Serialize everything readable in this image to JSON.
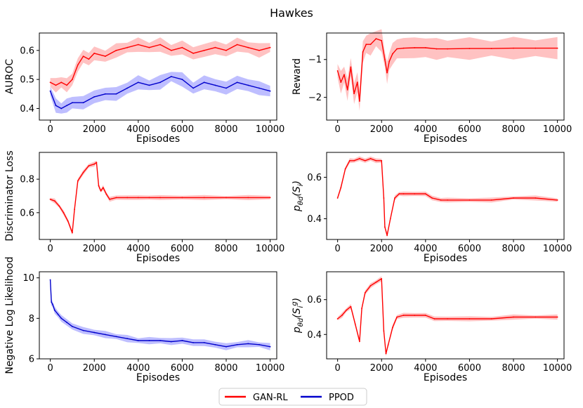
{
  "title": "Hawkes",
  "colors": {
    "gan": "#ff0000",
    "ppod": "#0000cc",
    "gan_band": "#ff7777",
    "ppod_band": "#6f6fff"
  },
  "legend": [
    {
      "label": "GAN-RL",
      "color": "#ff0000"
    },
    {
      "label": "PPOD",
      "color": "#0000cc"
    }
  ],
  "chart_data": [
    {
      "id": "auroc",
      "type": "line",
      "xlabel": "Episodes",
      "ylabel": "AUROC",
      "xlim": [
        -500,
        10300
      ],
      "ylim": [
        0.36,
        0.66
      ],
      "xticks": [
        0,
        2000,
        4000,
        6000,
        8000,
        10000
      ],
      "yticks": [
        0.4,
        0.5,
        0.6
      ],
      "ytick_labels": [
        "0.4",
        "0.5",
        "0.6"
      ],
      "series": [
        {
          "name": "GAN-RL",
          "color": "gan",
          "band": 0.025,
          "x": [
            0,
            250,
            500,
            750,
            1000,
            1250,
            1500,
            1750,
            2000,
            2500,
            3000,
            3500,
            4000,
            4500,
            5000,
            5500,
            6000,
            6500,
            7000,
            7500,
            8000,
            8500,
            9000,
            9500,
            10000
          ],
          "y": [
            0.49,
            0.48,
            0.49,
            0.48,
            0.5,
            0.55,
            0.58,
            0.57,
            0.59,
            0.58,
            0.6,
            0.61,
            0.62,
            0.61,
            0.62,
            0.6,
            0.61,
            0.59,
            0.6,
            0.61,
            0.6,
            0.62,
            0.61,
            0.6,
            0.61
          ]
        },
        {
          "name": "PPOD",
          "color": "ppod",
          "band": 0.025,
          "x": [
            0,
            250,
            500,
            750,
            1000,
            1500,
            2000,
            2500,
            3000,
            3500,
            4000,
            4500,
            5000,
            5500,
            6000,
            6500,
            7000,
            7500,
            8000,
            8500,
            9000,
            9500,
            10000
          ],
          "y": [
            0.46,
            0.41,
            0.4,
            0.41,
            0.42,
            0.42,
            0.44,
            0.45,
            0.45,
            0.47,
            0.49,
            0.48,
            0.49,
            0.51,
            0.5,
            0.47,
            0.49,
            0.48,
            0.47,
            0.49,
            0.48,
            0.47,
            0.46
          ]
        }
      ]
    },
    {
      "id": "reward",
      "type": "line",
      "xlabel": "Episodes",
      "ylabel": "Reward",
      "xlim": [
        -500,
        10300
      ],
      "ylim": [
        -2.6,
        -0.3
      ],
      "xticks": [
        0,
        2000,
        4000,
        6000,
        8000,
        10000
      ],
      "yticks": [
        -2,
        -1
      ],
      "ytick_labels": [
        "−2",
        "−1"
      ],
      "series": [
        {
          "name": "GAN-RL",
          "color": "gan",
          "band": 0.3,
          "x": [
            0,
            150,
            300,
            450,
            600,
            750,
            900,
            1000,
            1150,
            1300,
            1500,
            1750,
            2000,
            2150,
            2250,
            2350,
            2500,
            2700,
            3000,
            3500,
            4000,
            4500,
            5000,
            6000,
            7000,
            8000,
            9000,
            10000
          ],
          "y": [
            -1.3,
            -1.6,
            -1.4,
            -1.8,
            -1.2,
            -1.9,
            -1.6,
            -2.1,
            -0.8,
            -0.6,
            -0.6,
            -0.45,
            -0.5,
            -1.0,
            -1.35,
            -1.05,
            -0.85,
            -0.72,
            -0.7,
            -0.69,
            -0.69,
            -0.72,
            -0.72,
            -0.71,
            -0.71,
            -0.7,
            -0.7,
            -0.7
          ]
        }
      ]
    },
    {
      "id": "disc_loss",
      "type": "line",
      "xlabel": "Episodes",
      "ylabel": "Discriminator Loss",
      "xlim": [
        -500,
        10300
      ],
      "ylim": [
        0.44,
        0.96
      ],
      "xticks": [
        0,
        2000,
        4000,
        6000,
        8000,
        10000
      ],
      "yticks": [
        0.6,
        0.8
      ],
      "ytick_labels": [
        "0.6",
        "0.8"
      ],
      "series": [
        {
          "name": "GAN-RL",
          "color": "gan",
          "band": 0.015,
          "x": [
            0,
            200,
            400,
            600,
            800,
            1000,
            1100,
            1250,
            1500,
            1750,
            2000,
            2100,
            2200,
            2300,
            2400,
            2550,
            2700,
            3000,
            3500,
            4000,
            4500,
            5000,
            6000,
            7000,
            8000,
            9000,
            10000
          ],
          "y": [
            0.68,
            0.67,
            0.64,
            0.6,
            0.55,
            0.48,
            0.62,
            0.79,
            0.84,
            0.88,
            0.89,
            0.9,
            0.76,
            0.73,
            0.75,
            0.71,
            0.68,
            0.69,
            0.69,
            0.69,
            0.69,
            0.69,
            0.69,
            0.69,
            0.69,
            0.69,
            0.69
          ]
        }
      ]
    },
    {
      "id": "p_si",
      "type": "line",
      "xlabel": "Episodes",
      "ylabel": "p_{θd}(S_i)",
      "xlim": [
        -500,
        10300
      ],
      "ylim": [
        0.3,
        0.72
      ],
      "xticks": [
        0,
        2000,
        4000,
        6000,
        8000,
        10000
      ],
      "yticks": [
        0.4,
        0.6
      ],
      "ytick_labels": [
        "0.4",
        "0.6"
      ],
      "series": [
        {
          "name": "GAN-RL",
          "color": "gan",
          "band": 0.012,
          "x": [
            0,
            150,
            350,
            550,
            750,
            1000,
            1250,
            1500,
            1750,
            2000,
            2100,
            2150,
            2250,
            2400,
            2600,
            2800,
            3000,
            3500,
            4000,
            4300,
            4700,
            5000,
            6000,
            7000,
            8000,
            9000,
            10000
          ],
          "y": [
            0.5,
            0.55,
            0.64,
            0.68,
            0.68,
            0.69,
            0.68,
            0.69,
            0.68,
            0.68,
            0.5,
            0.36,
            0.32,
            0.4,
            0.5,
            0.52,
            0.52,
            0.52,
            0.52,
            0.5,
            0.49,
            0.49,
            0.49,
            0.49,
            0.5,
            0.5,
            0.49
          ]
        }
      ]
    },
    {
      "id": "nll",
      "type": "line",
      "xlabel": "Episodes",
      "ylabel": "Negative Log Likelihood",
      "xlim": [
        -500,
        10300
      ],
      "ylim": [
        6.0,
        10.3
      ],
      "xticks": [
        0,
        2000,
        4000,
        6000,
        8000,
        10000
      ],
      "yticks": [
        6,
        8,
        10
      ],
      "ytick_labels": [
        "6",
        "8",
        "10"
      ],
      "series": [
        {
          "name": "PPOD",
          "color": "ppod",
          "band": 0.18,
          "x": [
            0,
            50,
            100,
            200,
            350,
            500,
            750,
            1000,
            1500,
            2000,
            2500,
            3000,
            3500,
            4000,
            4500,
            5000,
            5500,
            6000,
            6500,
            7000,
            7500,
            8000,
            8500,
            9000,
            9500,
            10000
          ],
          "y": [
            9.9,
            8.8,
            8.7,
            8.4,
            8.2,
            8.0,
            7.8,
            7.6,
            7.4,
            7.3,
            7.2,
            7.1,
            7.0,
            6.9,
            6.9,
            6.9,
            6.85,
            6.9,
            6.8,
            6.8,
            6.7,
            6.6,
            6.7,
            6.75,
            6.7,
            6.6
          ]
        }
      ]
    },
    {
      "id": "p_sg",
      "type": "line",
      "xlabel": "Episodes",
      "ylabel": "p_{θd}(S_i^g)",
      "xlim": [
        -500,
        10300
      ],
      "ylim": [
        0.26,
        0.76
      ],
      "xticks": [
        0,
        2000,
        4000,
        6000,
        8000,
        10000
      ],
      "yticks": [
        0.4,
        0.6
      ],
      "ytick_labels": [
        "0.4",
        "0.6"
      ],
      "series": [
        {
          "name": "GAN-RL",
          "color": "gan",
          "band": 0.015,
          "x": [
            0,
            200,
            400,
            600,
            800,
            1000,
            1100,
            1250,
            1500,
            1750,
            2000,
            2100,
            2200,
            2300,
            2500,
            2700,
            3000,
            3500,
            4000,
            4400,
            5000,
            6000,
            7000,
            8000,
            9000,
            10000
          ],
          "y": [
            0.49,
            0.51,
            0.54,
            0.56,
            0.46,
            0.36,
            0.55,
            0.64,
            0.68,
            0.7,
            0.72,
            0.42,
            0.29,
            0.34,
            0.44,
            0.5,
            0.51,
            0.51,
            0.51,
            0.49,
            0.49,
            0.49,
            0.49,
            0.5,
            0.5,
            0.5
          ]
        }
      ]
    }
  ]
}
